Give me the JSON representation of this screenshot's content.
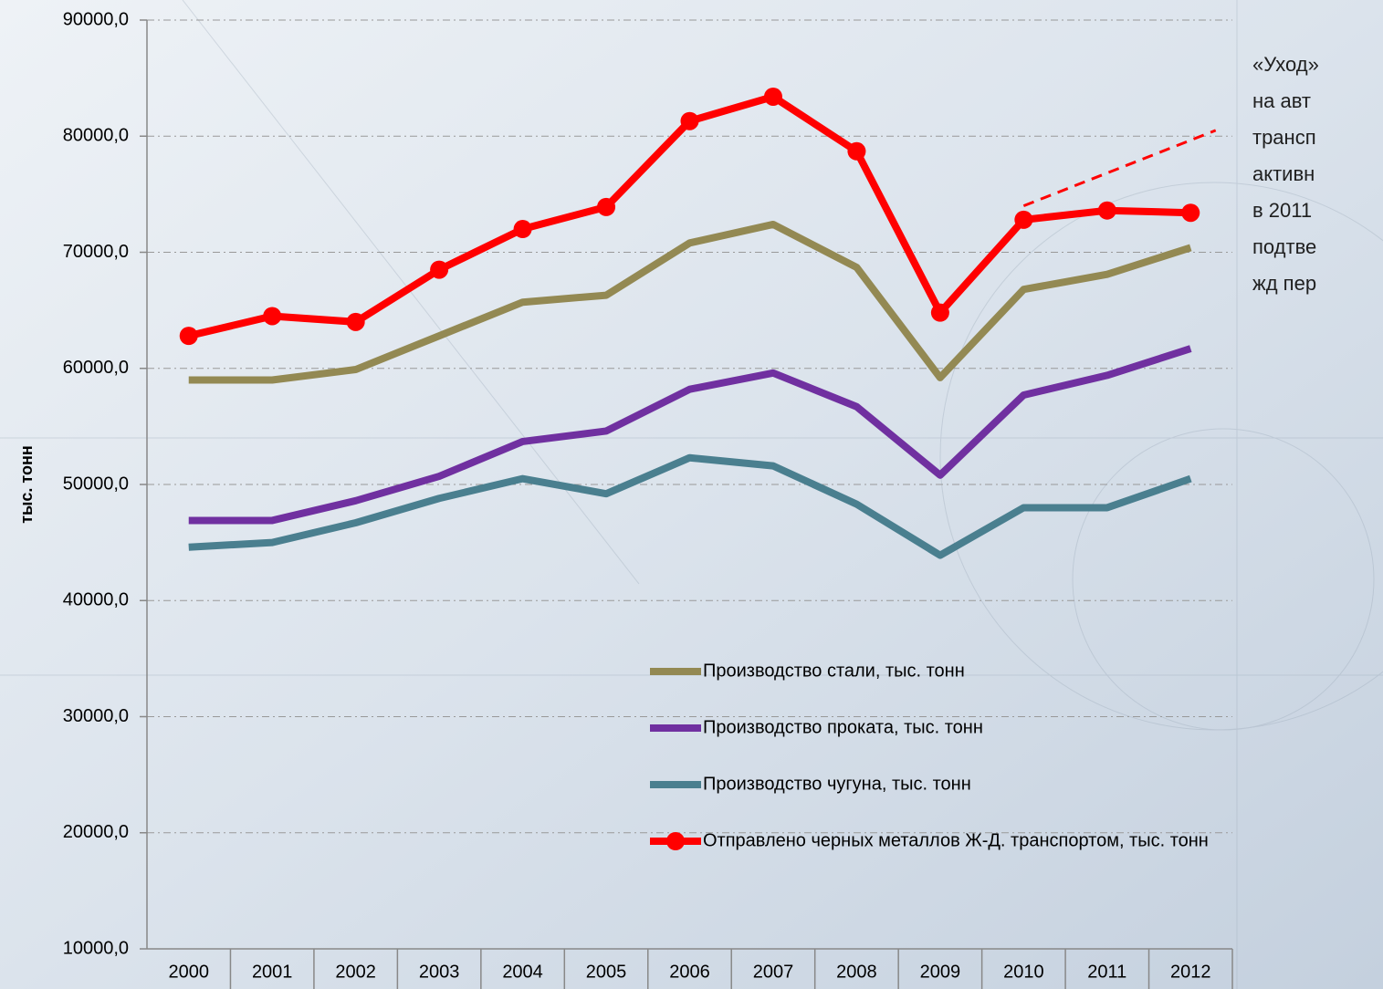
{
  "chart_data": {
    "type": "line",
    "y_label": "тыс. тонн",
    "categories": [
      "2000",
      "2001",
      "2002",
      "2003",
      "2004",
      "2005",
      "2006",
      "2007",
      "2008",
      "2009",
      "2010",
      "2011",
      "2012"
    ],
    "series": [
      {
        "name": "Производство стали, тыс. тонн",
        "color": "#938953",
        "markers": false,
        "values": [
          59000,
          59000,
          59900,
          62800,
          65700,
          66300,
          70800,
          72400,
          68700,
          59200,
          66800,
          68100,
          70400
        ]
      },
      {
        "name": "Производство проката, тыс. тонн",
        "color": "#7030a0",
        "markers": false,
        "values": [
          46900,
          46900,
          48600,
          50700,
          53700,
          54600,
          58200,
          59600,
          56700,
          50800,
          57700,
          59400,
          61700
        ]
      },
      {
        "name": "Производство чугуна, тыс. тонн",
        "color": "#4a7f8f",
        "markers": false,
        "values": [
          44600,
          45000,
          46700,
          48800,
          50500,
          49200,
          52300,
          51600,
          48300,
          43900,
          48000,
          48000,
          50500
        ]
      },
      {
        "name": "Отправлено черных металлов Ж-Д. транспортом, тыс. тонн",
        "color": "#ff0000",
        "markers": true,
        "values": [
          62800,
          64500,
          64000,
          68500,
          72000,
          73900,
          81300,
          83400,
          78700,
          64800,
          72800,
          73600,
          73400
        ]
      }
    ],
    "trend": {
      "color": "#ff0000",
      "x": [
        2010,
        2012.3
      ],
      "values": [
        74000,
        80500
      ]
    },
    "ylim": [
      10000,
      90000
    ],
    "yticks": [
      {
        "value": 10000,
        "label": "10000,0"
      },
      {
        "value": 20000,
        "label": "20000,0"
      },
      {
        "value": 30000,
        "label": "30000,0"
      },
      {
        "value": 40000,
        "label": "40000,0"
      },
      {
        "value": 50000,
        "label": "50000,0"
      },
      {
        "value": 60000,
        "label": "60000,0"
      },
      {
        "value": 70000,
        "label": "70000,0"
      },
      {
        "value": 80000,
        "label": "80000,0"
      },
      {
        "value": 90000,
        "label": "90000,0"
      }
    ],
    "grid": true,
    "annotation": [
      "«Уход»",
      "на авт",
      "трансп",
      "активн",
      "в 2011",
      "подтве",
      "жд пер"
    ]
  }
}
